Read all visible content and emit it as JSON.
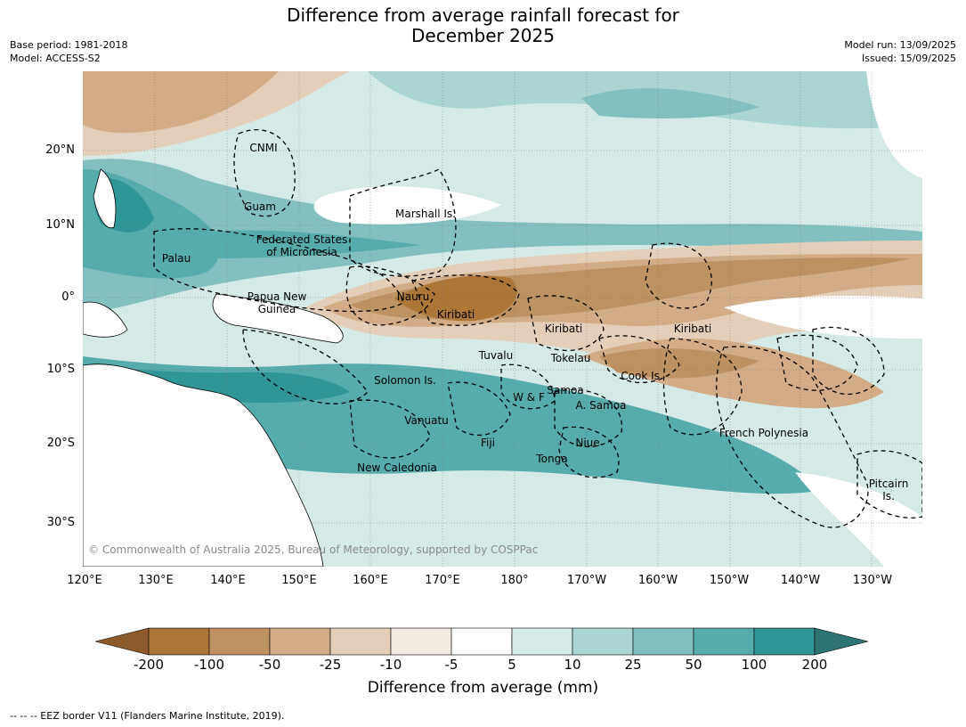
{
  "title_line1": "Difference from average rainfall forecast for",
  "title_line2": "December 2025",
  "base_period": "Base period: 1981-2018",
  "model": "Model: ACCESS-S2",
  "model_run": "Model run: 13/09/2025",
  "issued": "Issued: 15/09/2025",
  "lat_labels": [
    "20°N",
    "10°N",
    "0°",
    "10°S",
    "20°S",
    "30°S"
  ],
  "lon_labels": [
    "120°E",
    "130°E",
    "140°E",
    "150°E",
    "160°E",
    "170°E",
    "180°",
    "170°W",
    "160°W",
    "150°W",
    "140°W",
    "130°W"
  ],
  "places": {
    "cnmi": "CNMI",
    "guam": "Guam",
    "marshall": "Marshall Is.",
    "fsm1": "Federated States",
    "fsm2": "of Micronesia",
    "palau": "Palau",
    "png1": "Papua New",
    "png2": "Guinea",
    "nauru": "Nauru",
    "kiribati_w": "Kiribati",
    "kiribati_c": "Kiribati",
    "kiribati_e": "Kiribati",
    "tuvalu": "Tuvalu",
    "tokelau": "Tokelau",
    "cook": "Cook Is.",
    "solomon": "Solomon Is.",
    "wf": "W & F",
    "samoa": "Samoa",
    "asamoa": "A. Samoa",
    "vanuatu": "Vanuatu",
    "fiji": "Fiji",
    "niue": "Niue",
    "tonga": "Tonga",
    "french_poly": "French Polynesia",
    "newcal": "New Caledonia",
    "pitcairn1": "Pitcairn",
    "pitcairn2": "Is."
  },
  "copyright": "© Commonwealth of Australia 2025, Bureau of Meteorology, supported by COSPPac",
  "colorbar": {
    "title": "Difference from average (mm)",
    "ticks": [
      "-200",
      "-100",
      "-50",
      "-25",
      "-10",
      "-5",
      "5",
      "10",
      "25",
      "50",
      "100",
      "200"
    ],
    "colors": [
      "#8c5a2b",
      "#ad7637",
      "#be9160",
      "#d1ac86",
      "#e3cfb9",
      "#f2ebe2",
      "#ffffff",
      "#d5e9e7",
      "#abd5d3",
      "#82c0bf",
      "#56abab",
      "#309595",
      "#2d7472"
    ]
  },
  "footnote": "--  --  -- EEZ border V11 (Flanders Marine Institute, 2019)."
}
